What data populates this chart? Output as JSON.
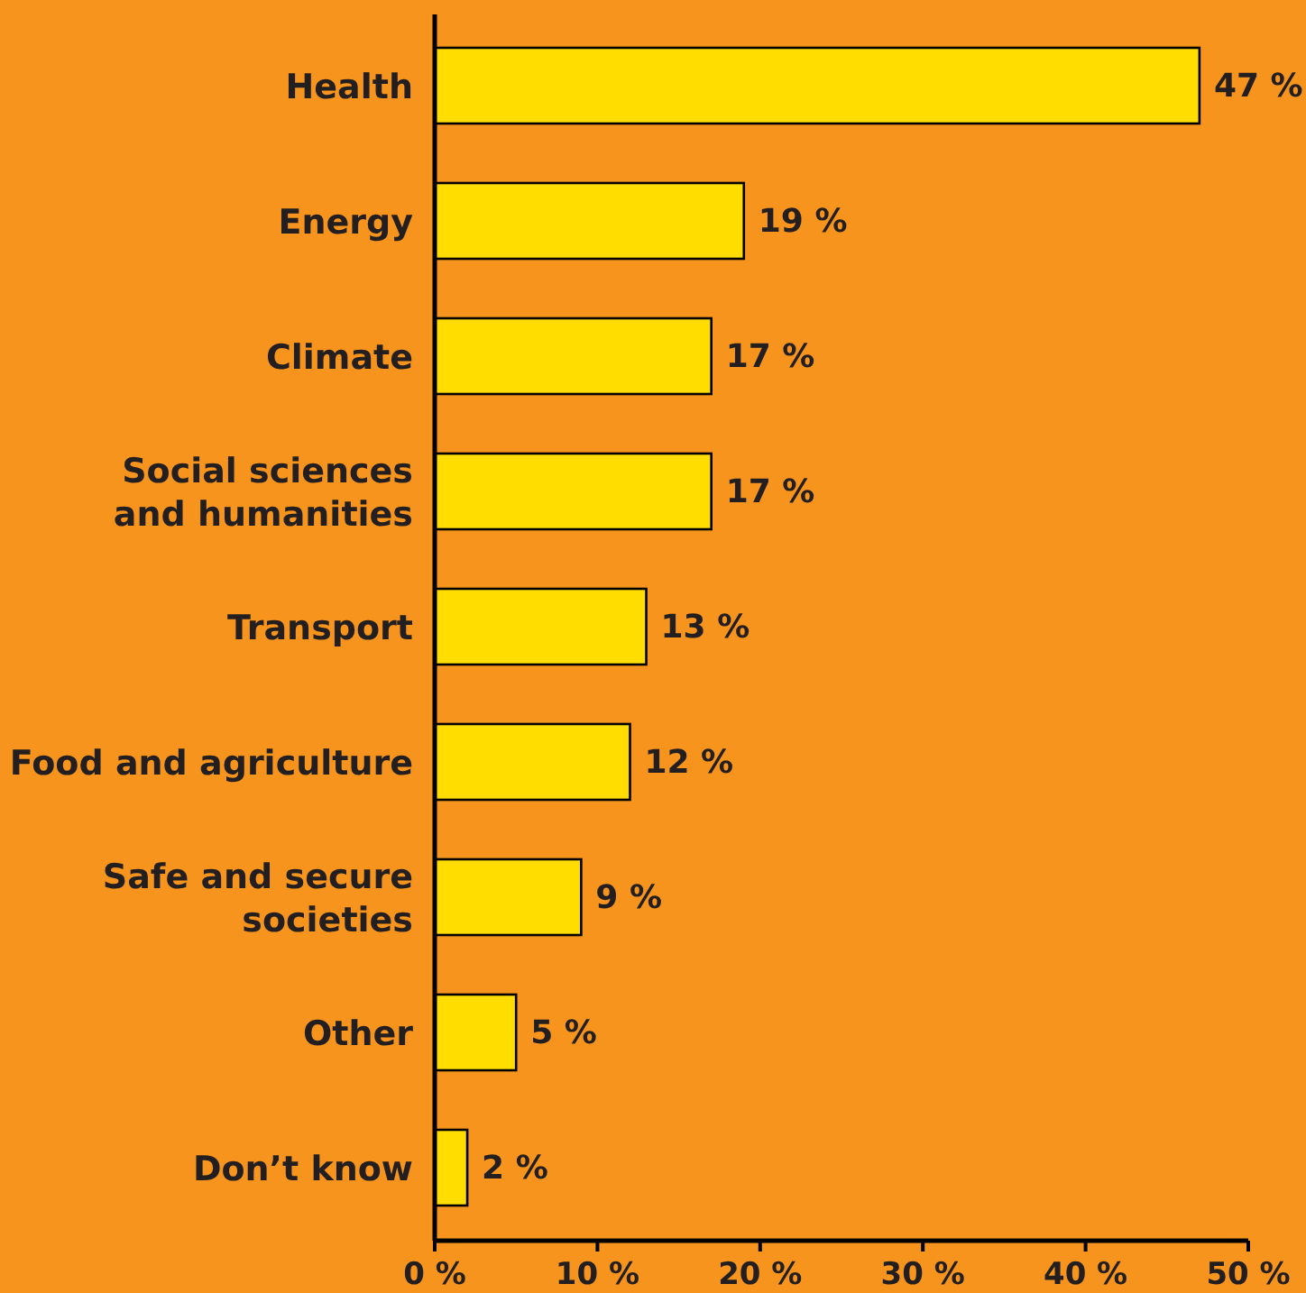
{
  "chart_data": {
    "type": "bar",
    "orientation": "horizontal",
    "categories": [
      "Health",
      "Energy",
      "Climate",
      "Social sciences and humanities",
      "Transport",
      "Food and agriculture",
      "Safe and secure societies",
      "Other",
      "Don’t know"
    ],
    "values": [
      47,
      19,
      17,
      17,
      13,
      12,
      9,
      5,
      2
    ],
    "value_labels": [
      "47 %",
      "19 %",
      "17 %",
      "17 %",
      "13 %",
      "12 %",
      "9 %",
      "5 %",
      "2 %"
    ],
    "color": "#ffdd00",
    "xlim": [
      0,
      50
    ],
    "xticks": [
      {
        "value": 0,
        "label": "0 %"
      },
      {
        "value": 10,
        "label": "10 %"
      },
      {
        "value": 20,
        "label": "20 %"
      },
      {
        "value": 30,
        "label": "30 %"
      },
      {
        "value": 40,
        "label": "40 %"
      },
      {
        "value": 50,
        "label": "50 %"
      }
    ],
    "grid": false
  }
}
